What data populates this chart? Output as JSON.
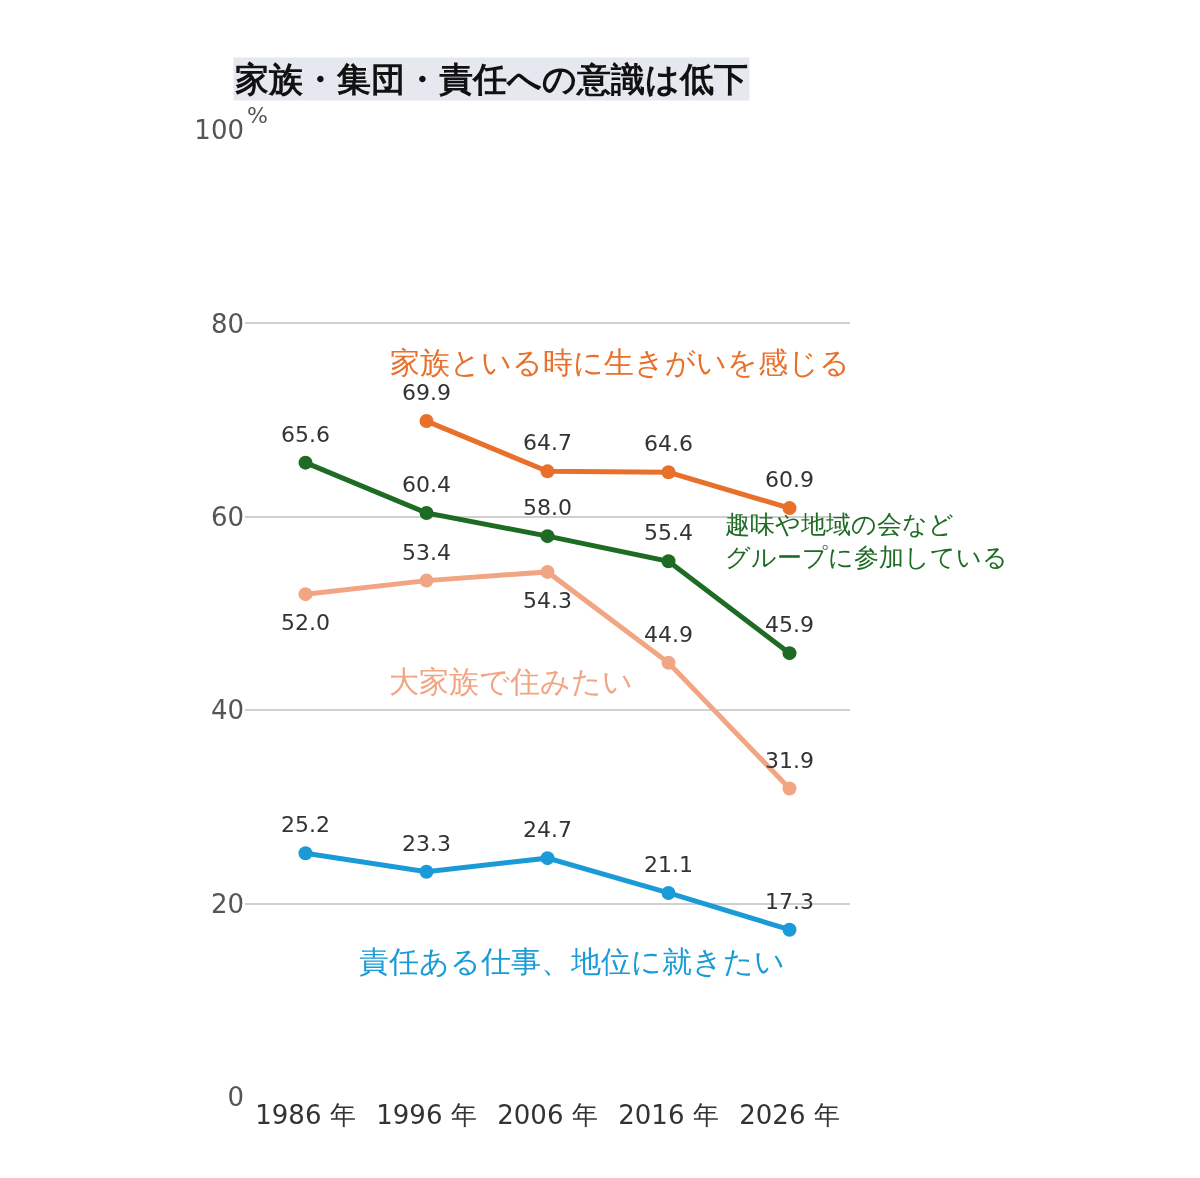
{
  "chart_data": {
    "type": "line",
    "title": "家族・集団・責任への意識は低下",
    "ylabel": "%",
    "categories": [
      "1986 年",
      "1996 年",
      "2006 年",
      "2016 年",
      "2026 年"
    ],
    "series": [
      {
        "name": "家族といる時に生きがいを感じる",
        "color": "#e8702a",
        "values": [
          null,
          69.9,
          64.7,
          64.6,
          60.9
        ],
        "value_labels": [
          null,
          "69.9",
          "64.7",
          "64.6",
          "60.9"
        ]
      },
      {
        "name": "趣味や地域の会などグループに参加している",
        "color": "#1e6b23",
        "values": [
          65.6,
          60.4,
          58.0,
          55.4,
          45.9
        ],
        "value_labels": [
          "65.6",
          "60.4",
          "58.0",
          "55.4",
          "45.9"
        ]
      },
      {
        "name": "大家族で住みたい",
        "color": "#f2a582",
        "values": [
          52.0,
          53.4,
          54.3,
          44.9,
          31.9
        ],
        "value_labels": [
          "52.0",
          "53.4",
          "54.3",
          "44.9",
          "31.9"
        ]
      },
      {
        "name": "責任ある仕事、地位に就きたい",
        "color": "#1a9bd7",
        "values": [
          25.2,
          23.3,
          24.7,
          21.1,
          17.3
        ],
        "value_labels": [
          "25.2",
          "23.3",
          "24.7",
          "21.1",
          "17.3"
        ]
      }
    ],
    "ylim": [
      0,
      100
    ],
    "yticks": [
      0,
      20,
      40,
      60,
      80,
      100
    ],
    "grid": "y",
    "legend": false,
    "marker": "circle",
    "line_style": "solid"
  }
}
